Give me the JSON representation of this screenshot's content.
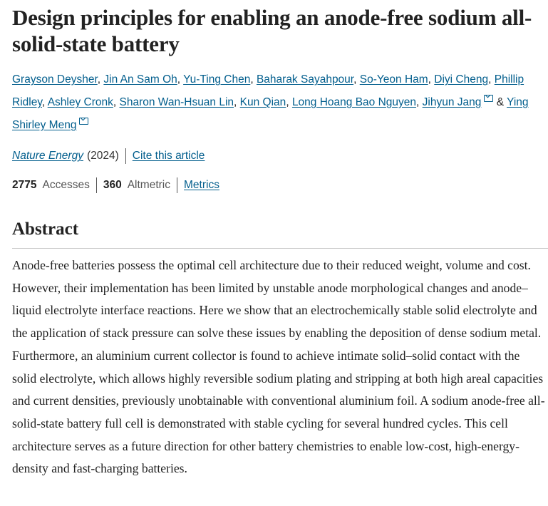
{
  "article": {
    "title": "Design principles for enabling an anode-free sodium all-solid-state battery",
    "authors": [
      "Grayson Deysher",
      "Jin An Sam Oh",
      "Yu-Ting Chen",
      "Baharak Sayahpour",
      "So-Yeon Ham",
      "Diyi Cheng",
      "Phillip Ridley",
      "Ashley Cronk",
      "Sharon Wan-Hsuan Lin",
      "Kun Qian",
      "Long Hoang Bao Nguyen",
      "Jihyun Jang",
      "Ying Shirley Meng"
    ],
    "separator": ", ",
    "ampersand": " & ",
    "journal": "Nature Energy",
    "year": "(2024)",
    "cite_label": "Cite this article",
    "accesses_count": "2775",
    "accesses_label": "Accesses",
    "altmetric_count": "360",
    "altmetric_label": "Altmetric",
    "metrics_label": "Metrics",
    "link_color": "#025e8d"
  },
  "abstract": {
    "heading": "Abstract",
    "text": "Anode-free batteries possess the optimal cell architecture due to their reduced weight, volume and cost. However, their implementation has been limited by unstable anode morphological changes and anode–liquid electrolyte interface reactions. Here we show that an electrochemically stable solid electrolyte and the application of stack pressure can solve these issues by enabling the deposition of dense sodium metal. Furthermore, an aluminium current collector is found to achieve intimate solid–solid contact with the solid electrolyte, which allows highly reversible sodium plating and stripping at both high areal capacities and current densities, previously unobtainable with conventional aluminium foil. A sodium anode-free all-solid-state battery full cell is demonstrated with stable cycling for several hundred cycles. This cell architecture serves as a future direction for other battery chemistries to enable low-cost, high-energy-density and fast-charging batteries."
  }
}
